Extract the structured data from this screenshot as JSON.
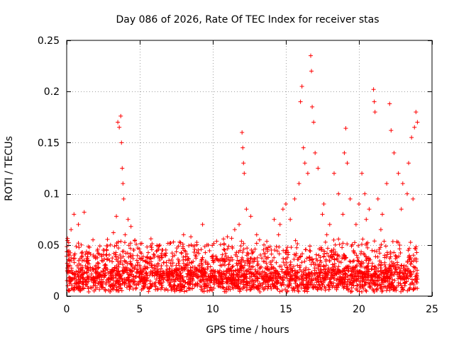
{
  "chart_data": {
    "type": "scatter",
    "title": "Day 086 of 2026, Rate Of TEC Index for receiver stas",
    "xlabel": "GPS time / hours",
    "ylabel": "ROTI / TECUs",
    "xlim": [
      0,
      25
    ],
    "ylim": [
      0,
      0.25
    ],
    "xticks": [
      0,
      5,
      10,
      15,
      20,
      25
    ],
    "yticks": [
      0,
      0.05,
      0.1,
      0.15,
      0.2,
      0.25
    ],
    "xtick_labels": [
      "0",
      "5",
      "10",
      "15",
      "20",
      "25"
    ],
    "ytick_labels": [
      "0",
      "0.05",
      "0.1",
      "0.15",
      "0.2",
      "0.25"
    ],
    "grid": true,
    "marker": "+",
    "color": "#ff0000",
    "series": [
      {
        "name": "ROTI",
        "points": [
          [
            0.2,
            0.012
          ],
          [
            0.3,
            0.065
          ],
          [
            0.5,
            0.08
          ],
          [
            0.8,
            0.07
          ],
          [
            1.2,
            0.082
          ],
          [
            1.0,
            0.05
          ],
          [
            1.5,
            0.035
          ],
          [
            2.0,
            0.03
          ],
          [
            2.5,
            0.045
          ],
          [
            3.0,
            0.05
          ],
          [
            3.2,
            0.062
          ],
          [
            3.4,
            0.078
          ],
          [
            3.5,
            0.17
          ],
          [
            3.6,
            0.165
          ],
          [
            3.7,
            0.176
          ],
          [
            3.75,
            0.15
          ],
          [
            3.8,
            0.125
          ],
          [
            3.85,
            0.11
          ],
          [
            3.9,
            0.095
          ],
          [
            4.0,
            0.06
          ],
          [
            4.2,
            0.075
          ],
          [
            4.4,
            0.068
          ],
          [
            4.6,
            0.045
          ],
          [
            5.0,
            0.03
          ],
          [
            5.5,
            0.048
          ],
          [
            6.0,
            0.04
          ],
          [
            6.5,
            0.038
          ],
          [
            7.0,
            0.035
          ],
          [
            7.5,
            0.03
          ],
          [
            8.0,
            0.06
          ],
          [
            8.5,
            0.058
          ],
          [
            9.0,
            0.045
          ],
          [
            9.3,
            0.07
          ],
          [
            9.6,
            0.05
          ],
          [
            10.0,
            0.035
          ],
          [
            10.5,
            0.03
          ],
          [
            11.0,
            0.058
          ],
          [
            11.5,
            0.065
          ],
          [
            11.8,
            0.07
          ],
          [
            12.0,
            0.16
          ],
          [
            12.05,
            0.145
          ],
          [
            12.1,
            0.13
          ],
          [
            12.15,
            0.12
          ],
          [
            12.3,
            0.085
          ],
          [
            12.6,
            0.078
          ],
          [
            13.0,
            0.06
          ],
          [
            13.5,
            0.05
          ],
          [
            14.0,
            0.045
          ],
          [
            14.2,
            0.075
          ],
          [
            14.5,
            0.06
          ],
          [
            14.8,
            0.085
          ],
          [
            15.0,
            0.09
          ],
          [
            15.3,
            0.075
          ],
          [
            15.6,
            0.095
          ],
          [
            15.9,
            0.11
          ],
          [
            16.0,
            0.19
          ],
          [
            16.1,
            0.205
          ],
          [
            16.2,
            0.145
          ],
          [
            16.3,
            0.13
          ],
          [
            16.5,
            0.12
          ],
          [
            16.7,
            0.235
          ],
          [
            16.75,
            0.22
          ],
          [
            16.8,
            0.185
          ],
          [
            16.9,
            0.17
          ],
          [
            17.0,
            0.14
          ],
          [
            17.2,
            0.125
          ],
          [
            17.5,
            0.08
          ],
          [
            17.8,
            0.06
          ],
          [
            18.0,
            0.07
          ],
          [
            18.3,
            0.12
          ],
          [
            18.6,
            0.1
          ],
          [
            19.0,
            0.14
          ],
          [
            19.1,
            0.164
          ],
          [
            19.2,
            0.13
          ],
          [
            19.4,
            0.095
          ],
          [
            19.8,
            0.07
          ],
          [
            20.0,
            0.09
          ],
          [
            20.2,
            0.12
          ],
          [
            20.4,
            0.1
          ],
          [
            20.7,
            0.085
          ],
          [
            21.0,
            0.202
          ],
          [
            21.05,
            0.19
          ],
          [
            21.1,
            0.18
          ],
          [
            21.3,
            0.095
          ],
          [
            21.6,
            0.08
          ],
          [
            21.9,
            0.11
          ],
          [
            22.1,
            0.188
          ],
          [
            22.2,
            0.162
          ],
          [
            22.4,
            0.14
          ],
          [
            22.7,
            0.12
          ],
          [
            23.0,
            0.11
          ],
          [
            23.3,
            0.1
          ],
          [
            23.6,
            0.155
          ],
          [
            23.8,
            0.165
          ],
          [
            23.9,
            0.18
          ],
          [
            24.0,
            0.17
          ],
          [
            0.5,
            0.04
          ],
          [
            1.8,
            0.055
          ],
          [
            2.7,
            0.04
          ],
          [
            4.8,
            0.035
          ],
          [
            6.8,
            0.042
          ],
          [
            8.8,
            0.04
          ],
          [
            10.8,
            0.045
          ],
          [
            13.2,
            0.055
          ],
          [
            14.6,
            0.07
          ],
          [
            17.6,
            0.09
          ],
          [
            18.9,
            0.08
          ],
          [
            20.5,
            0.075
          ],
          [
            21.5,
            0.065
          ],
          [
            22.9,
            0.085
          ],
          [
            23.4,
            0.13
          ],
          [
            23.7,
            0.095
          ]
        ]
      }
    ]
  }
}
